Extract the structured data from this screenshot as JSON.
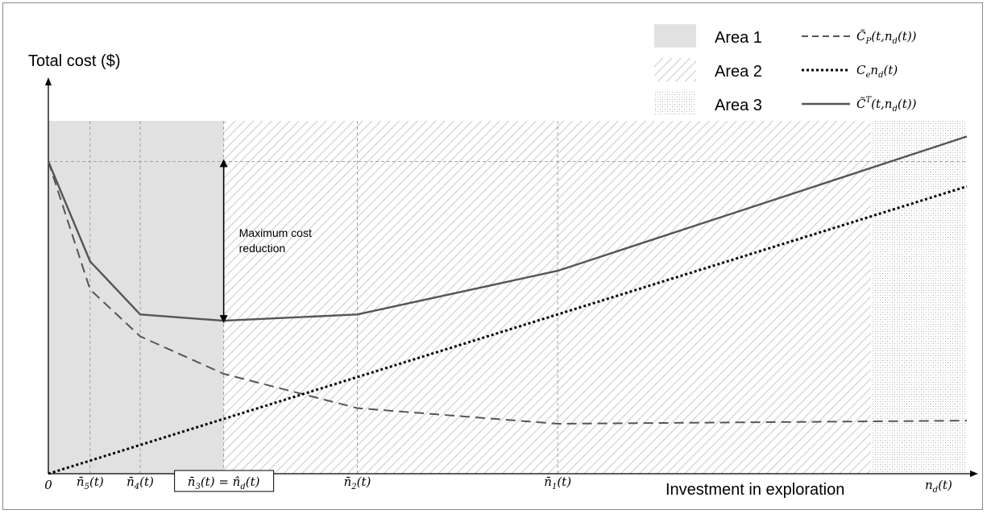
{
  "chart_data": {
    "type": "line",
    "ylabel": "Total cost ($)",
    "xlabel": "Investment in exploration",
    "x_variable": "n_d(t)",
    "x_ticks": [
      {
        "id": "0",
        "x": 0,
        "label": "0"
      },
      {
        "id": "n5",
        "x": 0.05,
        "label": "n̄₅(t)"
      },
      {
        "id": "n4",
        "x": 0.11,
        "label": "n̄₄(t)"
      },
      {
        "id": "n3",
        "x": 0.21,
        "label": "n̄₃(t) = n̂_d(t)",
        "boxed": true
      },
      {
        "id": "n2",
        "x": 0.37,
        "label": "n̄₂(t)"
      },
      {
        "id": "n1",
        "x": 0.61,
        "label": "n̄₁(t)"
      }
    ],
    "xlim": [
      0,
      1.1
    ],
    "ylim": [
      0,
      1.13
    ],
    "series": [
      {
        "id": "Cp",
        "name": "C̃_p(t, n_d(t))",
        "style": "dashed",
        "color": "#555555",
        "x": [
          0,
          0.05,
          0.11,
          0.21,
          0.37,
          0.61,
          1.1
        ],
        "y": [
          1.0,
          0.59,
          0.44,
          0.32,
          0.21,
          0.16,
          0.17
        ]
      },
      {
        "id": "Ce",
        "name": "C_e n_d(t)",
        "style": "dotted",
        "color": "#000000",
        "x": [
          0,
          1.1
        ],
        "y": [
          0,
          0.92
        ]
      },
      {
        "id": "CT",
        "name": "C̃^T(t, n_d(t))",
        "style": "solid",
        "color": "#555555",
        "x": [
          0,
          0.05,
          0.11,
          0.21,
          0.37,
          0.61,
          1.1
        ],
        "y": [
          1.0,
          0.68,
          0.51,
          0.49,
          0.51,
          0.65,
          1.08
        ]
      }
    ],
    "areas": [
      {
        "id": "area1",
        "name": "Area 1",
        "x": [
          0,
          0.21
        ],
        "fill": "solid-gray"
      },
      {
        "id": "area2",
        "name": "Area 2",
        "x": [
          0.21,
          0.985
        ],
        "fill": "diagonal-hatch"
      },
      {
        "id": "area3",
        "name": "Area 3",
        "x": [
          0.985,
          1.1
        ],
        "fill": "stipple"
      }
    ],
    "reference_line_y": 1.0,
    "annotation": {
      "text_lines": [
        "Maximum cost",
        "reduction"
      ],
      "x": 0.21,
      "y_from": 1.0,
      "y_to": 0.49
    },
    "grid": false,
    "legend_position": "top-right",
    "legend": [
      {
        "area": "Area 1",
        "line": "C̃_p(t, n_d(t))"
      },
      {
        "area": "Area 2",
        "line": "C_e n_d(t)"
      },
      {
        "area": "Area 3",
        "line": "C̃^T(t, n_d(t))"
      }
    ]
  }
}
